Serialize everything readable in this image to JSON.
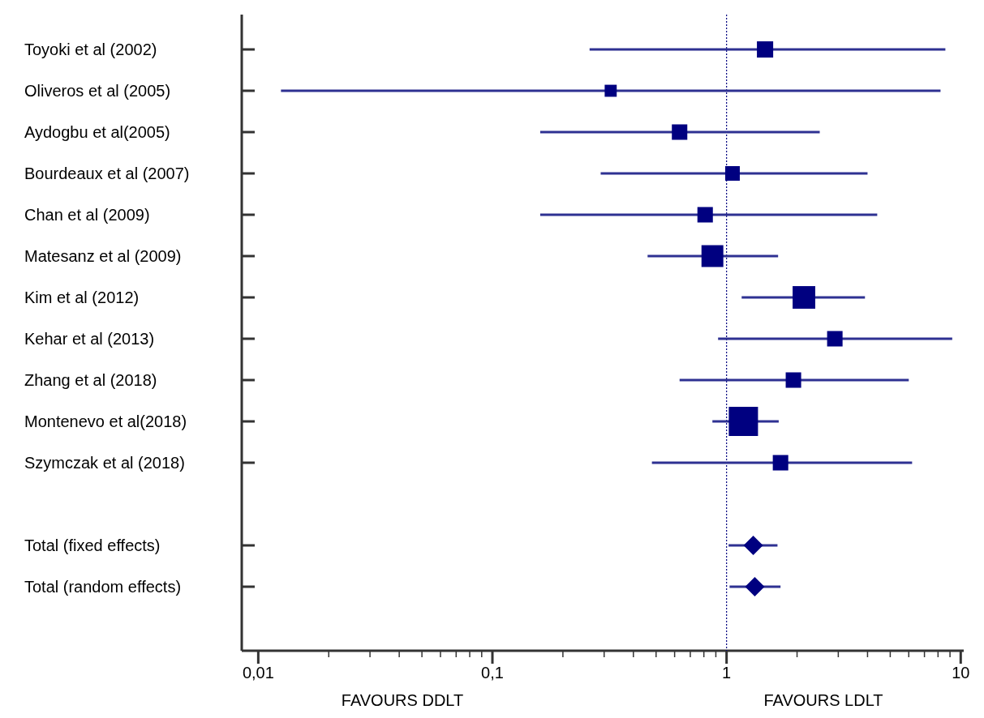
{
  "chart_data": {
    "type": "scatter",
    "orientation": "horizontal",
    "log": "x",
    "categories": [
      "Toyoki et al (2002)",
      "Oliveros et al (2005)",
      "Aydogbu et al(2005)",
      "Bourdeaux et al (2007)",
      "Chan et al (2009)",
      "Matesanz et al (2009)",
      "Kim et al (2012)",
      "Kehar et al (2013)",
      "Zhang et al (2018)",
      "Montenevo et al(2018)",
      "Szymczak et al (2018)",
      null,
      "Total (fixed effects)",
      "Total (random effects)"
    ],
    "series": [
      {
        "type": "bubble",
        "marker": "square",
        "color": "#000080",
        "values": [
          1.46,
          0.32,
          0.63,
          1.06,
          0.81,
          0.87,
          2.14,
          2.9,
          1.93,
          1.18,
          1.7,
          null,
          null,
          null
        ],
        "sizes": [
          0.31,
          0.17,
          0.28,
          0.25,
          0.28,
          0.56,
          0.6,
          0.28,
          0.28,
          1,
          0.28,
          null,
          null,
          null
        ],
        "errors": [
          [
            0.26,
            8.6
          ],
          [
            0.0125,
            8.2
          ],
          [
            0.16,
            2.5
          ],
          [
            0.29,
            4.0
          ],
          [
            0.16,
            4.4
          ],
          [
            0.46,
            1.66
          ],
          [
            1.16,
            3.9
          ],
          [
            0.92,
            9.2
          ],
          [
            0.63,
            6.0
          ],
          [
            0.87,
            1.67
          ],
          [
            0.48,
            6.2
          ],
          null,
          null,
          null
        ]
      },
      {
        "marker": "diamond",
        "color": "#000080",
        "values": [
          null,
          null,
          null,
          null,
          null,
          null,
          null,
          null,
          null,
          null,
          null,
          null,
          1.3,
          1.32
        ],
        "errors": [
          null,
          null,
          null,
          null,
          null,
          null,
          null,
          null,
          null,
          null,
          null,
          null,
          [
            1.02,
            1.65
          ],
          [
            1.03,
            1.7
          ]
        ]
      }
    ],
    "xlim": [
      0.0085,
      10.3
    ],
    "xticks": [
      {
        "value": 0.01,
        "label": "0,01"
      },
      {
        "value": 0.02,
        "label": null
      },
      {
        "value": 0.03,
        "label": null
      },
      {
        "value": 0.04,
        "label": null
      },
      {
        "value": 0.05,
        "label": null
      },
      {
        "value": 0.06,
        "label": null
      },
      {
        "value": 0.07,
        "label": null
      },
      {
        "value": 0.08,
        "label": null
      },
      {
        "value": 0.09,
        "label": null
      },
      {
        "value": 0.1,
        "label": "0,1"
      },
      {
        "value": 0.2,
        "label": null
      },
      {
        "value": 0.3,
        "label": null
      },
      {
        "value": 0.4,
        "label": null
      },
      {
        "value": 0.5,
        "label": null
      },
      {
        "value": 0.6,
        "label": null
      },
      {
        "value": 0.7,
        "label": null
      },
      {
        "value": 0.8,
        "label": null
      },
      {
        "value": 0.9,
        "label": null
      },
      1,
      {
        "value": 2,
        "label": null
      },
      {
        "value": 3,
        "label": null
      },
      {
        "value": 4,
        "label": null
      },
      {
        "value": 5,
        "label": null
      },
      {
        "value": 6,
        "label": null
      },
      {
        "value": 7,
        "label": null
      },
      {
        "value": 8,
        "label": null
      },
      {
        "value": 9,
        "label": null
      },
      10
    ],
    "ref_lines": [
      {
        "axis": "x",
        "value": 1,
        "line_style": "dotted",
        "color": "#000080"
      }
    ],
    "annotations": [
      "FAVOURS DDLT",
      "FAVOURS LDLT"
    ]
  }
}
